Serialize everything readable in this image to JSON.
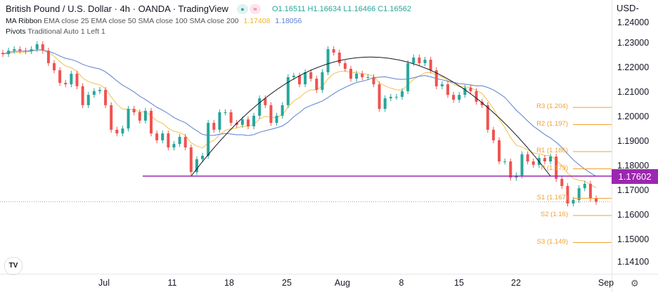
{
  "header": {
    "title": "British Pound / U.S. Dollar · 4h · OANDA · TradingView",
    "status_icons": [
      "market-open-dot-icon",
      "delayed-data-icon"
    ],
    "open": "O1.16511",
    "high": "H1.16634",
    "low": "L1.16466",
    "close": "C1.16562"
  },
  "legend": {
    "ma_name": "MA Ribbon",
    "ma_params": "EMA close 25 EMA close 50 SMA close 100 SMA close 200",
    "ma_value_1": "1.17408",
    "ma_value_2": "1.18056",
    "pivots_name": "Pivots",
    "pivots_params": "Traditional Auto 1 Left 1"
  },
  "colors": {
    "up": "#26a69a",
    "down": "#ef5350",
    "ema": "#f0c24b",
    "sma": "#5b7fd1",
    "pivot": "#f0a030",
    "support_line": "#9c27b0",
    "arc": "#131722"
  },
  "axis": {
    "currency": "USD",
    "currency_menu_icon": "chevron-down-icon",
    "settings_icon": "gear-icon"
  },
  "logo_text": "TV",
  "chart_data": {
    "type": "candlestick",
    "symbol": "GBPUSD",
    "timeframe": "4h",
    "x_ticks": [
      "Jul",
      "11",
      "18",
      "25",
      "Aug",
      "8",
      "15",
      "22",
      "Sep"
    ],
    "y_ticks": [
      "1.24000",
      "1.23000",
      "1.22000",
      "1.21000",
      "1.20000",
      "1.19000",
      "1.18000",
      "1.17000",
      "1.16000",
      "1.15000",
      "1.14100"
    ],
    "ylim": [
      1.141,
      1.24
    ],
    "closes": [
      1.2257,
      1.2271,
      1.2277,
      1.2271,
      1.2269,
      1.2277,
      1.2297,
      1.2271,
      1.222,
      1.2191,
      1.214,
      1.2134,
      1.2177,
      1.2126,
      1.2049,
      1.2091,
      1.2106,
      1.2111,
      1.2049,
      1.1949,
      1.1934,
      1.1954,
      1.2034,
      1.202,
      1.1986,
      1.2026,
      1.1934,
      1.1906,
      1.1934,
      1.1877,
      1.1891,
      1.192,
      1.1877,
      1.1777,
      1.1829,
      1.1843,
      1.1977,
      1.1949,
      1.202,
      1.202,
      1.1977,
      1.1969,
      1.1991,
      1.1963,
      1.2006,
      1.2077,
      1.2049,
      1.1977,
      1.2006,
      1.2049,
      1.2163,
      1.2169,
      1.2134,
      1.2183,
      1.2157,
      1.2111,
      1.2183,
      1.2277,
      1.2263,
      1.222,
      1.2197,
      1.2157,
      1.2177,
      1.2163,
      1.2163,
      1.2134,
      1.2034,
      1.2077,
      1.2083,
      1.2083,
      1.2106,
      1.222,
      1.2243,
      1.222,
      1.2234,
      1.2191,
      1.2126,
      1.2134,
      1.2091,
      1.2071,
      1.2091,
      1.212,
      1.2106,
      1.2063,
      1.2049,
      1.1949,
      1.1906,
      1.182,
      1.182,
      1.1754,
      1.1763,
      1.1849,
      1.182,
      1.1806,
      1.1834,
      1.182,
      1.184,
      1.1749,
      1.172,
      1.1649,
      1.1663,
      1.1711,
      1.1729,
      1.1669,
      1.1656
    ],
    "current_price": 1.16562,
    "horizontal_line": {
      "price": 1.17602,
      "label": "1.17602"
    },
    "arc": {
      "start_price": 1.176,
      "peak_price": 1.2245,
      "end_price": 1.176
    },
    "pivots": [
      {
        "label": "R3 (1.204)",
        "price": 1.204
      },
      {
        "label": "R2 (1.197)",
        "price": 1.197
      },
      {
        "label": "R1 (1.186)",
        "price": 1.186
      },
      {
        "label": "P (1.179)",
        "price": 1.179
      },
      {
        "label": "S1 (1.167)",
        "price": 1.167
      },
      {
        "label": "S2 (1.16)",
        "price": 1.16
      },
      {
        "label": "S3 (1.149)",
        "price": 1.149
      }
    ]
  }
}
